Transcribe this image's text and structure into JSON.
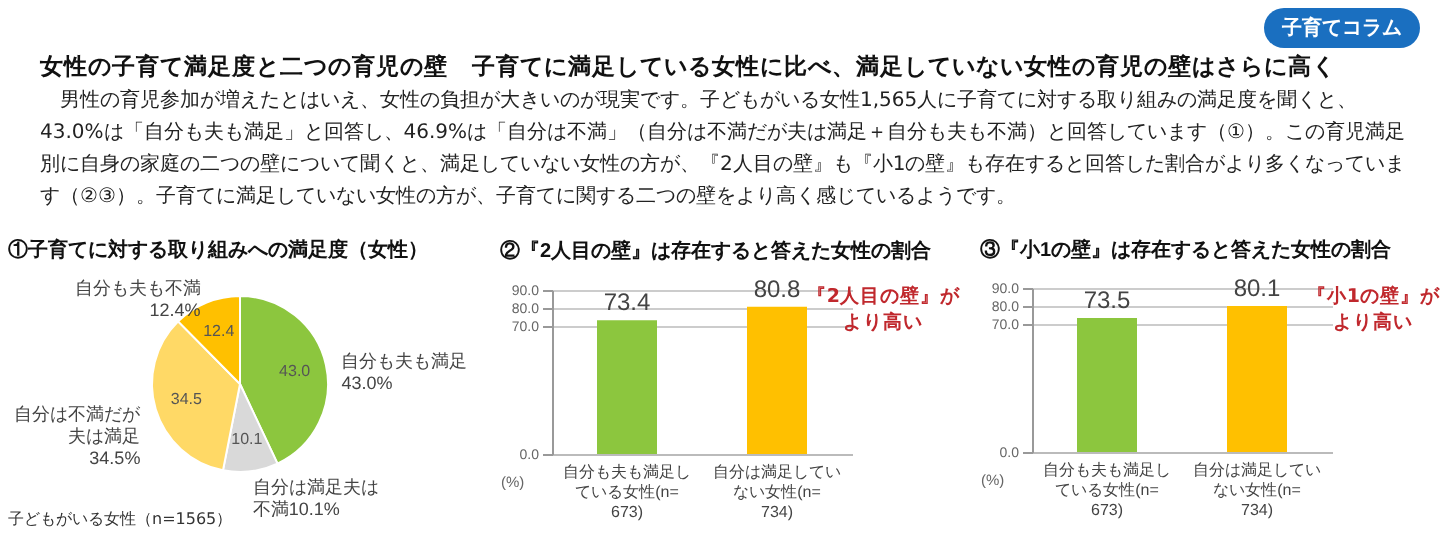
{
  "chart_data": [
    {
      "type": "other",
      "title": "女性の子育て満足度と二つの育児の壁　子育てに満足している女性に比べ、満足していない女性の育児の壁はさらに高く",
      "subtitle": "男性の育児参加が増えたとはいえ、女性の負担が大きいのが現実です。子どもがいる女性1,565人に子育てに対する取り組みの満足度を聞くと、43.0%は「自分も夫も満足」と回答し、46.9%は「自分は不満」（自分は不満だが夫は満足＋自分も夫も不満）と回答しています（①）。この育児満足別に自身の家庭の二つの壁について聞くと、満足していない女性の方が、『2人目の壁』も『小1の壁』も存在すると回答した割合がより多くなっています（②③）。子育てに満足していない女性の方が、子育てに関する二つの壁をより高く感じているようです。",
      "annotations": [
        "子育てコラム"
      ]
    },
    {
      "type": "pie",
      "title": "①子育てに対する取り組みへの満足度（女性）",
      "categories": [
        "自分も夫も満足43.0%",
        "自分は満足夫は不満10.1%",
        "自分は不満だが夫は満足34.5%",
        "自分も夫も不満12.4%"
      ],
      "values": [
        43.0,
        10.1,
        34.5,
        12.4
      ],
      "colors": [
        "#8cc63e",
        "#d9d9d9",
        "#ffd966",
        "#ffc000"
      ],
      "value_labels": [
        "43.0",
        "10.1",
        "34.5",
        "12.4"
      ],
      "annotations": [
        "子どもがいる女性（n=1565）"
      ]
    },
    {
      "type": "bar",
      "title": "②『2人目の壁』は存在すると答えた女性の割合",
      "categories": [
        "自分も夫も満足している女性(n=673)",
        "自分は満足していない女性(n=734)"
      ],
      "values": [
        73.4,
        80.8
      ],
      "colors": [
        "#8cc63e",
        "#ffc000"
      ],
      "ylim": [
        0,
        90
      ],
      "yticks": [
        {
          "value": 0,
          "label": "0.0"
        },
        {
          "value": 70,
          "label": "70.0"
        },
        {
          "value": 80,
          "label": "80.0"
        },
        {
          "value": 90,
          "label": "90.0"
        }
      ],
      "ylabel": "(%)",
      "grid": "y",
      "data_labels": true,
      "annotations": [
        "『2人目の壁』がより高い"
      ]
    },
    {
      "type": "bar",
      "title": "③『小1の壁』は存在すると答えた女性の割合",
      "categories": [
        "自分も夫も満足している女性(n=673)",
        "自分は満足していない女性(n=734)"
      ],
      "values": [
        73.5,
        80.1
      ],
      "colors": [
        "#8cc63e",
        "#ffc000"
      ],
      "ylim": [
        0,
        90
      ],
      "yticks": [
        {
          "value": 0,
          "label": "0.0"
        },
        {
          "value": 70,
          "label": "70.0"
        },
        {
          "value": 80,
          "label": "80.0"
        },
        {
          "value": 90,
          "label": "90.0"
        }
      ],
      "ylabel": "(%)",
      "grid": "y",
      "data_labels": true,
      "annotations": [
        "『小1の壁』がより高い"
      ]
    }
  ]
}
